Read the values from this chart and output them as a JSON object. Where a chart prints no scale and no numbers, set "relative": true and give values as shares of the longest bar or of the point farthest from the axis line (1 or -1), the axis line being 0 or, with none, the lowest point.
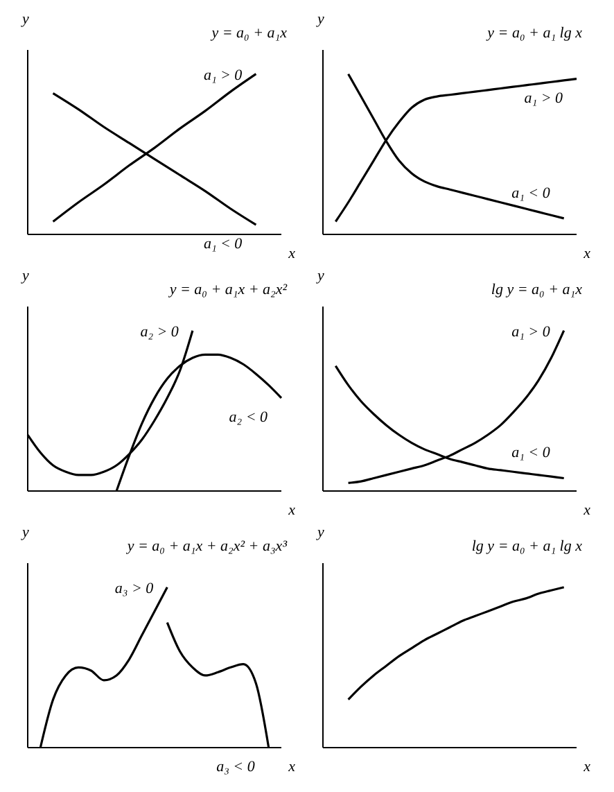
{
  "chart_data": [
    {
      "type": "line",
      "title": "y = a₀ + a₁x",
      "xlabel": "x",
      "ylabel": "y",
      "relative": true,
      "tick_labels": false,
      "categories": [
        null,
        null,
        null,
        null,
        null,
        null,
        null,
        null,
        null,
        null,
        null
      ],
      "series": [
        {
          "name": "a₁ > 0",
          "color": "#000000",
          "values": [
            null,
            0.08,
            0.2,
            0.31,
            0.43,
            0.54,
            0.66,
            0.77,
            0.89,
            1.0,
            null
          ]
        },
        {
          "name": "a₁ < 0",
          "color": "#000000",
          "values": [
            null,
            0.88,
            0.78,
            0.67,
            0.57,
            0.47,
            0.37,
            0.27,
            0.16,
            0.06,
            null
          ]
        }
      ]
    },
    {
      "type": "line",
      "title": "y = a₀ + a₁ lg x",
      "xlabel": "x",
      "ylabel": "y",
      "relative": true,
      "tick_labels": false,
      "categories": [
        null,
        null,
        null,
        null,
        null,
        null,
        null,
        null,
        null,
        null,
        null,
        null,
        null,
        null,
        null,
        null,
        null,
        null,
        null,
        null,
        null
      ],
      "series": [
        {
          "name": "a₁ > 0",
          "color": "#000000",
          "values": [
            null,
            0.08,
            0.2,
            0.33,
            0.46,
            0.59,
            0.7,
            0.79,
            0.84,
            0.86,
            0.87,
            0.88,
            0.89,
            0.9,
            0.91,
            0.92,
            0.93,
            0.94,
            0.95,
            0.96,
            0.97
          ]
        },
        {
          "name": "a₁ < 0",
          "color": "#000000",
          "values": [
            null,
            null,
            1.0,
            0.86,
            0.72,
            0.58,
            0.46,
            0.38,
            0.33,
            0.3,
            0.28,
            0.26,
            0.24,
            0.22,
            0.2,
            0.18,
            0.16,
            0.14,
            0.12,
            0.1,
            null
          ]
        }
      ]
    },
    {
      "type": "line",
      "title": "y = a₀ + a₁x + a₂x²",
      "xlabel": "x",
      "ylabel": "y",
      "relative": true,
      "tick_labels": false,
      "categories": [
        null,
        null,
        null,
        null,
        null,
        null,
        null,
        null,
        null,
        null,
        null,
        null,
        null,
        null,
        null,
        null,
        null,
        null,
        null,
        null,
        null
      ],
      "series": [
        {
          "name": "a₂ > 0",
          "color": "#000000",
          "values": [
            0.35,
            0.24,
            0.16,
            0.12,
            0.1,
            0.1,
            0.12,
            0.16,
            0.23,
            0.32,
            0.44,
            0.58,
            0.75,
            1.0,
            null,
            null,
            null,
            null,
            null,
            null,
            null
          ]
        },
        {
          "name": "a₂ < 0",
          "color": "#000000",
          "values": [
            null,
            null,
            null,
            null,
            null,
            null,
            null,
            0,
            0.22,
            0.42,
            0.58,
            0.7,
            0.78,
            0.83,
            0.85,
            0.85,
            0.83,
            0.79,
            0.73,
            0.66,
            0.58
          ]
        }
      ]
    },
    {
      "type": "line",
      "title": "lg y = a₀ + a₁x",
      "xlabel": "x",
      "ylabel": "y",
      "relative": true,
      "tick_labels": false,
      "categories": [
        null,
        null,
        null,
        null,
        null,
        null,
        null,
        null,
        null,
        null,
        null,
        null,
        null,
        null,
        null,
        null,
        null,
        null,
        null,
        null,
        null
      ],
      "series": [
        {
          "name": "a₁ > 0",
          "color": "#000000",
          "values": [
            null,
            null,
            0.05,
            0.06,
            0.08,
            0.1,
            0.12,
            0.14,
            0.16,
            0.19,
            0.22,
            0.26,
            0.3,
            0.35,
            0.41,
            0.49,
            0.58,
            0.69,
            0.83,
            1.0,
            null
          ]
        },
        {
          "name": "a₁ < 0",
          "color": "#000000",
          "values": [
            null,
            0.78,
            0.66,
            0.56,
            0.48,
            0.41,
            0.35,
            0.3,
            0.26,
            0.23,
            0.2,
            0.18,
            0.16,
            0.14,
            0.13,
            0.12,
            0.11,
            0.1,
            0.09,
            0.08,
            null
          ]
        }
      ]
    },
    {
      "type": "line",
      "title": "y = a₀ + a₁x + a₂x² + a₃x³",
      "xlabel": "x",
      "ylabel": "y",
      "relative": true,
      "tick_labels": false,
      "categories": [
        null,
        null,
        null,
        null,
        null,
        null,
        null,
        null,
        null,
        null,
        null,
        null,
        null,
        null,
        null,
        null,
        null,
        null,
        null,
        null,
        null
      ],
      "series": [
        {
          "name": "a₃ > 0",
          "color": "#000000",
          "values": [
            null,
            0,
            0.3,
            0.45,
            0.5,
            0.48,
            0.42,
            0.45,
            0.55,
            0.7,
            0.85,
            1.0,
            null,
            null,
            null,
            null,
            null,
            null,
            null,
            null,
            null
          ]
        },
        {
          "name": "a₃ < 0",
          "color": "#000000",
          "values": [
            null,
            null,
            null,
            null,
            null,
            null,
            null,
            null,
            null,
            null,
            null,
            0.78,
            0.6,
            0.5,
            0.45,
            0.47,
            0.5,
            0.52,
            0.4,
            0,
            null
          ]
        }
      ]
    },
    {
      "type": "line",
      "title": "lg y = a₀ + a₁ lg x",
      "xlabel": "x",
      "ylabel": "y",
      "relative": true,
      "tick_labels": false,
      "categories": [
        null,
        null,
        null,
        null,
        null,
        null,
        null,
        null,
        null,
        null,
        null,
        null,
        null,
        null,
        null,
        null,
        null,
        null,
        null,
        null,
        null
      ],
      "series": [
        {
          "color": "#000000",
          "values": [
            null,
            null,
            0.3,
            0.38,
            0.45,
            0.51,
            0.57,
            0.62,
            0.67,
            0.71,
            0.75,
            0.79,
            0.82,
            0.85,
            0.88,
            0.91,
            0.93,
            0.96,
            0.98,
            1.0,
            null
          ]
        }
      ]
    }
  ]
}
